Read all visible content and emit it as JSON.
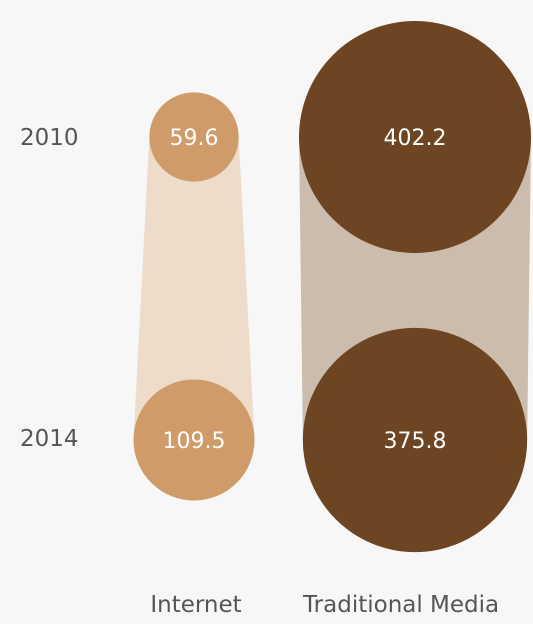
{
  "chart_data": {
    "type": "bubble-comparison",
    "title": "",
    "years": [
      "2010",
      "2014"
    ],
    "series": [
      {
        "name": "Internet",
        "color": "#cf9b68",
        "band_color": "#ecdcc9",
        "values": [
          59.6,
          109.5
        ],
        "labels": [
          "59.6",
          "109.5"
        ]
      },
      {
        "name": "Traditional Media",
        "color": "#6e4522",
        "band_color": "#cbbcad",
        "values": [
          402.2,
          375.8
        ],
        "labels": [
          "402.2",
          "375.8"
        ]
      }
    ]
  }
}
